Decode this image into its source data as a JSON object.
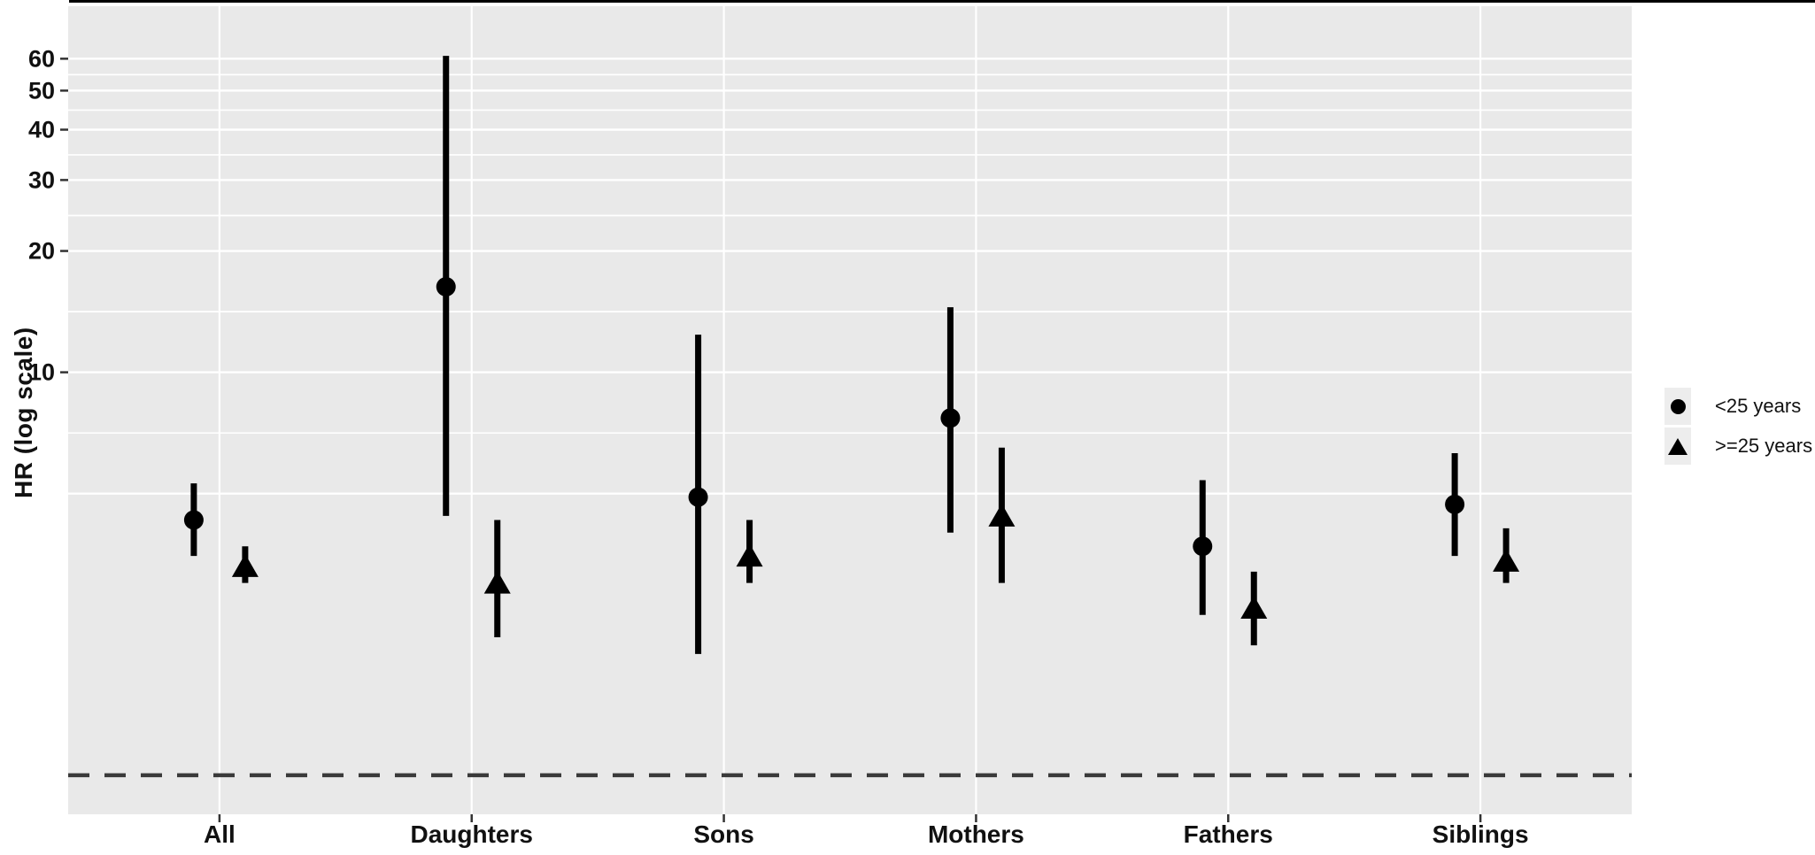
{
  "figure": {
    "background_color": "#FFFFFF",
    "panel_background_color": "#E9E9E9",
    "gridline_color": "#FFFFFF",
    "marker_color": "#000000",
    "tick_color": "#333333",
    "text_color": "#111111",
    "top_border_color": "#000000",
    "legend_key_color": "#EDEDED",
    "reference_line_color": "#3A3A3A"
  },
  "legend": {
    "items": [
      {
        "label": "<25 years",
        "marker": "circle-icon"
      },
      {
        "label": ">=25 years",
        "marker": "triangle-icon"
      }
    ]
  },
  "chart_data": {
    "type": "scatter",
    "subtype": "point-range-forest-plot",
    "title": "",
    "xlabel": "",
    "ylabel": "HR (log scale)",
    "y_scale": "log10",
    "ylim": [
      0.8,
      81
    ],
    "y_tick_labels": [
      10,
      20,
      30,
      40,
      50,
      60
    ],
    "y_gridlines_major": [
      5,
      10,
      20,
      30,
      40,
      50,
      60
    ],
    "y_gridlines_minor": [
      7.07,
      14.14,
      24.49,
      34.64,
      44.72,
      54.77
    ],
    "grid": "on",
    "legend_position": "right",
    "categories": [
      "All",
      "Daughters",
      "Sons",
      "Mothers",
      "Fathers",
      "Siblings"
    ],
    "reference_value": 1,
    "series": [
      {
        "name": "<25 years",
        "marker": "circle",
        "hr": [
          4.3,
          16.3,
          4.9,
          7.7,
          3.7,
          4.7
        ],
        "ci_low": [
          3.5,
          4.4,
          2.0,
          4.0,
          2.5,
          3.5
        ],
        "ci_high": [
          5.3,
          61.0,
          12.4,
          14.5,
          5.4,
          6.3
        ]
      },
      {
        "name": ">=25 years",
        "marker": "triangle",
        "hr": [
          3.3,
          3.0,
          3.5,
          4.4,
          2.6,
          3.4
        ],
        "ci_low": [
          3.0,
          2.2,
          3.0,
          3.0,
          2.1,
          3.0
        ],
        "ci_high": [
          3.7,
          4.3,
          4.3,
          6.5,
          3.2,
          4.1
        ]
      }
    ]
  }
}
